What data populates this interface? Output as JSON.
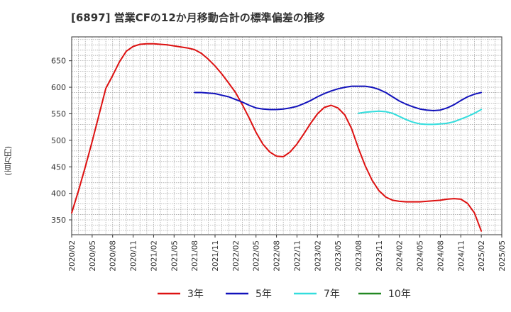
{
  "chart_data": {
    "type": "line",
    "title": "[6897]  営業CFの12か月移動合計の標準偏差の推移",
    "ylabel": "(百万円)",
    "ylim": [
      322,
      695
    ],
    "yticks": [
      350,
      400,
      450,
      500,
      550,
      600,
      650
    ],
    "x_range": [
      "2020-02",
      "2025-05"
    ],
    "xticks": [
      "2020/02",
      "2020/05",
      "2020/08",
      "2020/11",
      "2021/02",
      "2021/05",
      "2021/08",
      "2021/11",
      "2022/02",
      "2022/05",
      "2022/08",
      "2022/11",
      "2023/02",
      "2023/05",
      "2023/08",
      "2023/11",
      "2024/02",
      "2024/05",
      "2024/08",
      "2024/11",
      "2025/02",
      "2025/05"
    ],
    "grid": true,
    "legend_position": "bottom",
    "series": [
      {
        "name": "3年",
        "color": "#dd1111",
        "points": [
          [
            "2020-02",
            363
          ],
          [
            "2020-03",
            405
          ],
          [
            "2020-04",
            450
          ],
          [
            "2020-05",
            498
          ],
          [
            "2020-06",
            548
          ],
          [
            "2020-07",
            598
          ],
          [
            "2020-08",
            622
          ],
          [
            "2020-09",
            648
          ],
          [
            "2020-10",
            668
          ],
          [
            "2020-11",
            677
          ],
          [
            "2020-12",
            681
          ],
          [
            "2021-01",
            682
          ],
          [
            "2021-02",
            682
          ],
          [
            "2021-03",
            681
          ],
          [
            "2021-04",
            680
          ],
          [
            "2021-05",
            678
          ],
          [
            "2021-06",
            676
          ],
          [
            "2021-07",
            674
          ],
          [
            "2021-08",
            671
          ],
          [
            "2021-09",
            664
          ],
          [
            "2021-10",
            653
          ],
          [
            "2021-11",
            640
          ],
          [
            "2021-12",
            625
          ],
          [
            "2022-01",
            608
          ],
          [
            "2022-02",
            590
          ],
          [
            "2022-03",
            567
          ],
          [
            "2022-04",
            542
          ],
          [
            "2022-05",
            515
          ],
          [
            "2022-06",
            493
          ],
          [
            "2022-07",
            478
          ],
          [
            "2022-08",
            470
          ],
          [
            "2022-09",
            469
          ],
          [
            "2022-10",
            478
          ],
          [
            "2022-11",
            493
          ],
          [
            "2022-12",
            512
          ],
          [
            "2023-01",
            532
          ],
          [
            "2023-02",
            550
          ],
          [
            "2023-03",
            562
          ],
          [
            "2023-04",
            566
          ],
          [
            "2023-05",
            561
          ],
          [
            "2023-06",
            548
          ],
          [
            "2023-07",
            522
          ],
          [
            "2023-08",
            485
          ],
          [
            "2023-09",
            452
          ],
          [
            "2023-10",
            425
          ],
          [
            "2023-11",
            405
          ],
          [
            "2023-12",
            393
          ],
          [
            "2024-01",
            387
          ],
          [
            "2024-02",
            385
          ],
          [
            "2024-03",
            384
          ],
          [
            "2024-04",
            384
          ],
          [
            "2024-05",
            384
          ],
          [
            "2024-06",
            385
          ],
          [
            "2024-07",
            386
          ],
          [
            "2024-08",
            387
          ],
          [
            "2024-09",
            389
          ],
          [
            "2024-10",
            390
          ],
          [
            "2024-11",
            389
          ],
          [
            "2024-12",
            381
          ],
          [
            "2025-01",
            363
          ],
          [
            "2025-02",
            329
          ]
        ]
      },
      {
        "name": "5年",
        "color": "#1111bb",
        "points": [
          [
            "2021-08",
            590
          ],
          [
            "2021-09",
            590
          ],
          [
            "2021-10",
            589
          ],
          [
            "2021-11",
            588
          ],
          [
            "2021-12",
            585
          ],
          [
            "2022-01",
            582
          ],
          [
            "2022-02",
            577
          ],
          [
            "2022-03",
            572
          ],
          [
            "2022-04",
            566
          ],
          [
            "2022-05",
            561
          ],
          [
            "2022-06",
            559
          ],
          [
            "2022-07",
            558
          ],
          [
            "2022-08",
            558
          ],
          [
            "2022-09",
            559
          ],
          [
            "2022-10",
            561
          ],
          [
            "2022-11",
            564
          ],
          [
            "2022-12",
            569
          ],
          [
            "2023-01",
            575
          ],
          [
            "2023-02",
            582
          ],
          [
            "2023-03",
            588
          ],
          [
            "2023-04",
            593
          ],
          [
            "2023-05",
            597
          ],
          [
            "2023-06",
            600
          ],
          [
            "2023-07",
            602
          ],
          [
            "2023-08",
            602
          ],
          [
            "2023-09",
            602
          ],
          [
            "2023-10",
            600
          ],
          [
            "2023-11",
            596
          ],
          [
            "2023-12",
            590
          ],
          [
            "2024-01",
            582
          ],
          [
            "2024-02",
            574
          ],
          [
            "2024-03",
            568
          ],
          [
            "2024-04",
            563
          ],
          [
            "2024-05",
            559
          ],
          [
            "2024-06",
            557
          ],
          [
            "2024-07",
            556
          ],
          [
            "2024-08",
            557
          ],
          [
            "2024-09",
            561
          ],
          [
            "2024-10",
            567
          ],
          [
            "2024-11",
            575
          ],
          [
            "2024-12",
            582
          ],
          [
            "2025-01",
            587
          ],
          [
            "2025-02",
            590
          ]
        ]
      },
      {
        "name": "7年",
        "color": "#33dddd",
        "points": [
          [
            "2023-08",
            551
          ],
          [
            "2023-09",
            553
          ],
          [
            "2023-10",
            554
          ],
          [
            "2023-11",
            555
          ],
          [
            "2023-12",
            554
          ],
          [
            "2024-01",
            551
          ],
          [
            "2024-02",
            545
          ],
          [
            "2024-03",
            539
          ],
          [
            "2024-04",
            534
          ],
          [
            "2024-05",
            531
          ],
          [
            "2024-06",
            530
          ],
          [
            "2024-07",
            530
          ],
          [
            "2024-08",
            531
          ],
          [
            "2024-09",
            532
          ],
          [
            "2024-10",
            535
          ],
          [
            "2024-11",
            540
          ],
          [
            "2024-12",
            545
          ],
          [
            "2025-01",
            551
          ],
          [
            "2025-02",
            558
          ]
        ]
      },
      {
        "name": "10年",
        "color": "#228822",
        "points": []
      }
    ]
  }
}
